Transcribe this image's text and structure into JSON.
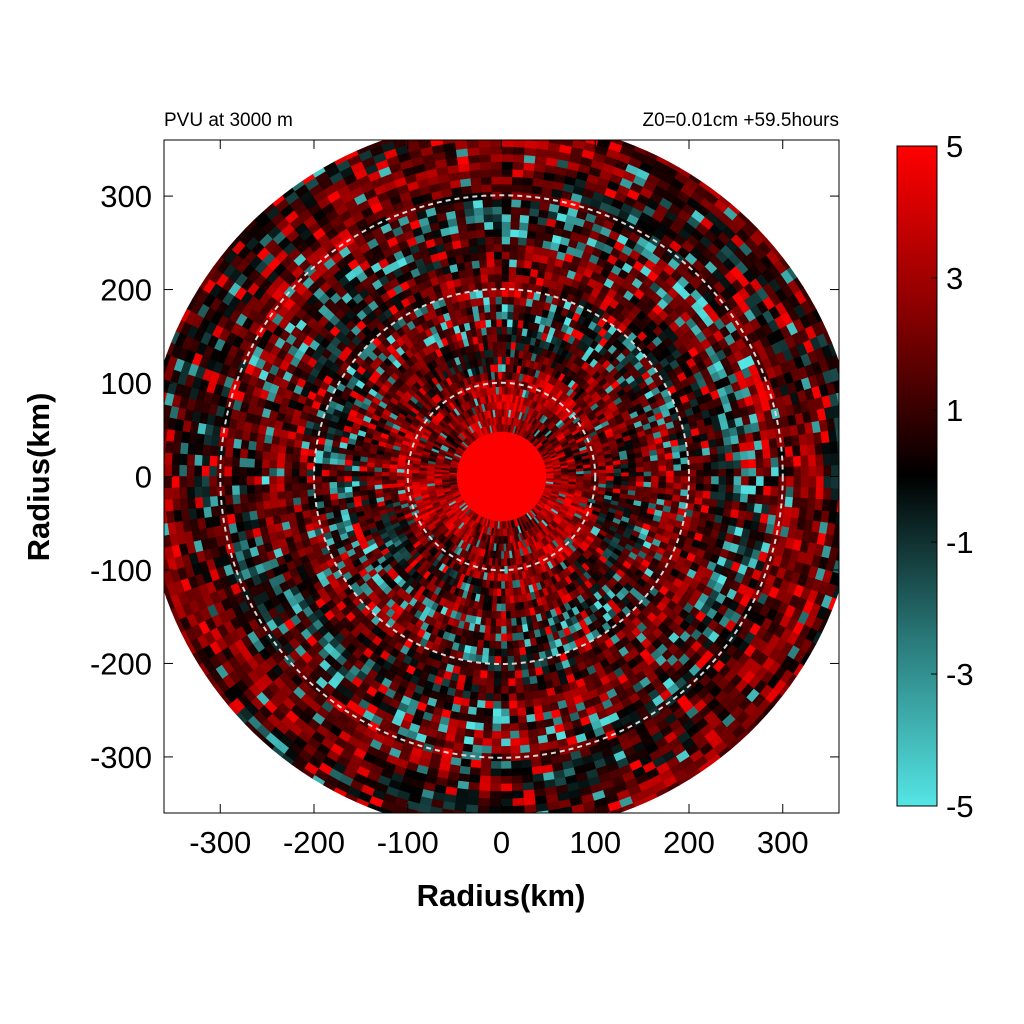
{
  "chart_data": {
    "type": "heatmap",
    "title_left": "PVU at  3000 m",
    "title_right": "Z0=0.01cm  +59.5hours",
    "xlabel": "Radius(km)",
    "ylabel": "Radius(km)",
    "xlim": [
      -360,
      360
    ],
    "ylim": [
      -360,
      360
    ],
    "x_ticks": [
      -300,
      -200,
      -100,
      0,
      100,
      200,
      300
    ],
    "y_ticks": [
      300,
      200,
      100,
      0,
      -100,
      -200,
      -300
    ],
    "domain_radius_km": 380,
    "reference_circles_km": [
      100,
      200,
      300
    ],
    "colorbar": {
      "min": -5,
      "max": 5,
      "ticks": [
        5,
        3,
        1,
        -1,
        -3,
        -5
      ],
      "colors": {
        "min": "#55e5e5",
        "zero": "#000000",
        "max": "#ff0000"
      }
    },
    "features": {
      "core": {
        "radius_km": 45,
        "value": 5
      },
      "cyan_bands_km": [
        [
          150,
          200
        ],
        [
          250,
          300
        ]
      ]
    }
  }
}
